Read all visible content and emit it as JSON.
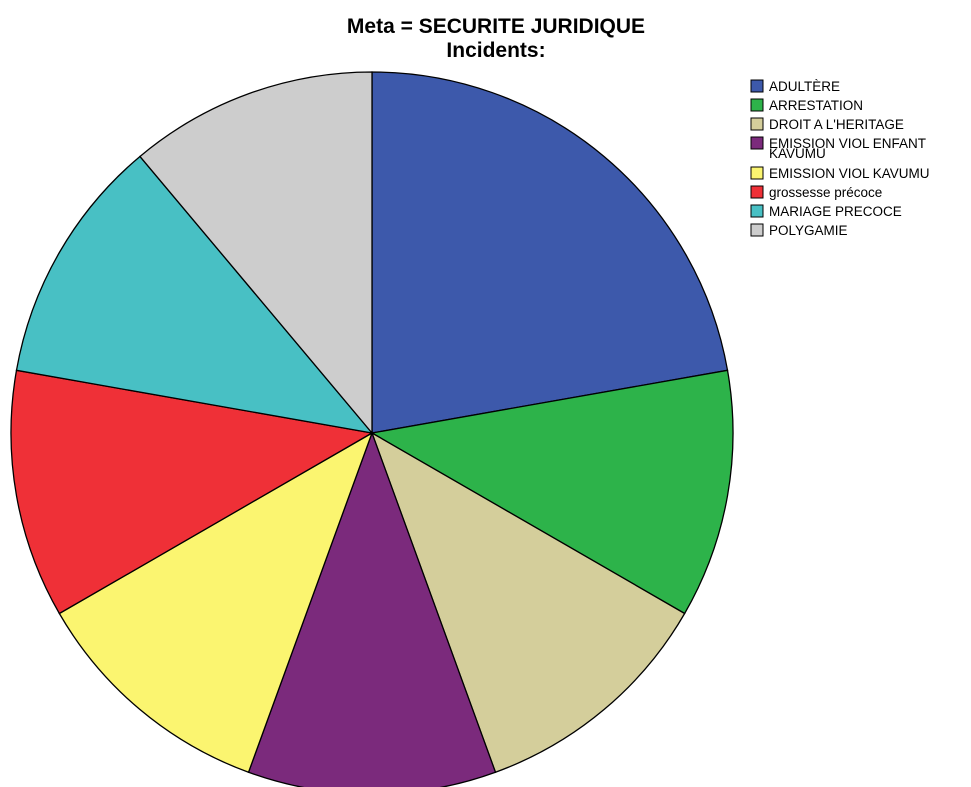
{
  "chart_data": {
    "type": "pie",
    "title": "Meta = SECURITE JURIDIQUE",
    "subtitle": "Incidents:",
    "legend_position": "top-right",
    "start_angle_deg": 0,
    "direction": "clockwise",
    "slices": [
      {
        "label": "ADULTÈRE",
        "value": 2,
        "color": "#3d59ab"
      },
      {
        "label": "ARRESTATION",
        "value": 1,
        "color": "#2db34a"
      },
      {
        "label": "DROIT A L'HERITAGE",
        "value": 1,
        "color": "#d4ce9b"
      },
      {
        "label": "EMISSION VIOL ENFANT KAVUMU",
        "value": 1,
        "color": "#7b2a7c"
      },
      {
        "label": "EMISSION VIOL KAVUMU",
        "value": 1,
        "color": "#fbf570"
      },
      {
        "label": "grossesse précoce",
        "value": 1,
        "color": "#ef3037"
      },
      {
        "label": "MARIAGE PRECOCE",
        "value": 1,
        "color": "#48c0c4"
      },
      {
        "label": "POLYGAMIE",
        "value": 1,
        "color": "#cdcdcd"
      }
    ]
  }
}
